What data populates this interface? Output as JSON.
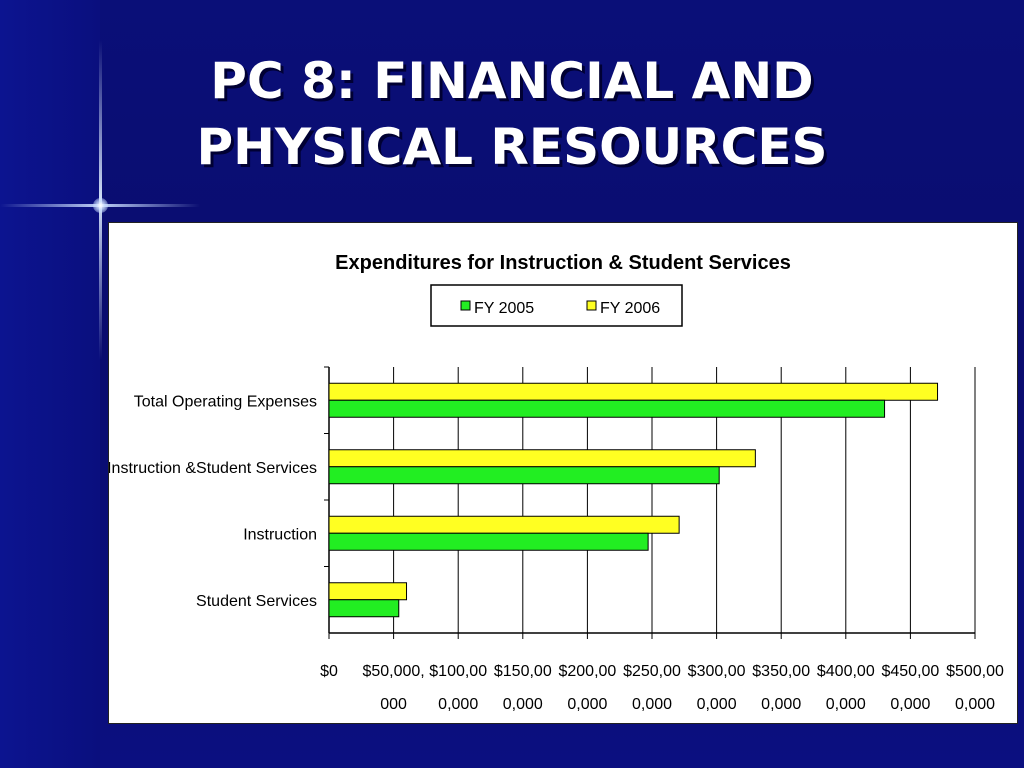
{
  "slide": {
    "title_line1": "PC 8: FINANCIAL AND",
    "title_line2": "PHYSICAL RESOURCES"
  },
  "colors": {
    "background": "#0a0f78",
    "fy2005": "#22ee22",
    "fy2006": "#ffff22"
  },
  "chart_data": {
    "type": "bar",
    "orientation": "horizontal",
    "title": "Expenditures for Instruction & Student Services",
    "legend_position": "top",
    "grid": true,
    "categories": [
      "Total Operating Expenses",
      "Instruction &Student Services",
      "Instruction",
      "Student Services"
    ],
    "series": [
      {
        "name": "FY 2005",
        "values": [
          430000000,
          302000000,
          247000000,
          54000000
        ]
      },
      {
        "name": "FY 2006",
        "values": [
          471000000,
          330000000,
          271000000,
          60000000
        ]
      }
    ],
    "xlim": [
      0,
      500000000
    ],
    "xticks": [
      {
        "line1": "$0",
        "line2": ""
      },
      {
        "line1": "$50,000,",
        "line2": "000"
      },
      {
        "line1": "$100,00",
        "line2": "0,000"
      },
      {
        "line1": "$150,00",
        "line2": "0,000"
      },
      {
        "line1": "$200,00",
        "line2": "0,000"
      },
      {
        "line1": "$250,00",
        "line2": "0,000"
      },
      {
        "line1": "$300,00",
        "line2": "0,000"
      },
      {
        "line1": "$350,00",
        "line2": "0,000"
      },
      {
        "line1": "$400,00",
        "line2": "0,000"
      },
      {
        "line1": "$450,00",
        "line2": "0,000"
      },
      {
        "line1": "$500,00",
        "line2": "0,000"
      }
    ]
  }
}
